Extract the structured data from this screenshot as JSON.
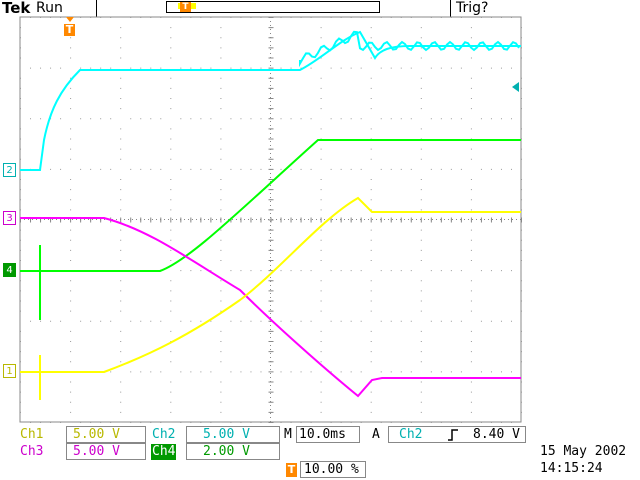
{
  "header": {
    "brand": "Tek",
    "status": "Run",
    "trigger_state": "Trig?",
    "trigger_marker": "T"
  },
  "channel_markers": {
    "ch1": "1",
    "ch2": "2",
    "ch3": "3",
    "ch4": "4"
  },
  "readout": {
    "ch1_label": "Ch1",
    "ch1_scale": "5.00 V",
    "ch2_label": "Ch2",
    "ch2_scale": "5.00 V",
    "ch3_label": "Ch3",
    "ch3_scale": "5.00 V",
    "ch4_label": "Ch4",
    "ch4_scale": "2.00 V",
    "timebase_prefix": "M",
    "timebase": "10.0ms",
    "acq_mode": "A",
    "trigger_source": "Ch2",
    "trigger_slope_icon": "rising-edge-icon",
    "trigger_level": "8.40 V",
    "trigger_position_marker": "T",
    "trigger_position": "10.00 %",
    "date": "15 May 2002",
    "time": "14:15:24"
  },
  "colors": {
    "ch1": "#ffff00",
    "ch2": "#00ffff",
    "ch3": "#ff00ff",
    "ch4": "#00ff00",
    "ch1_text": "#b8b800",
    "ch2_text": "#00b0b0",
    "ch3_text": "#cc00cc",
    "ch4_text": "#009900",
    "trigger": "#ff8000"
  }
}
